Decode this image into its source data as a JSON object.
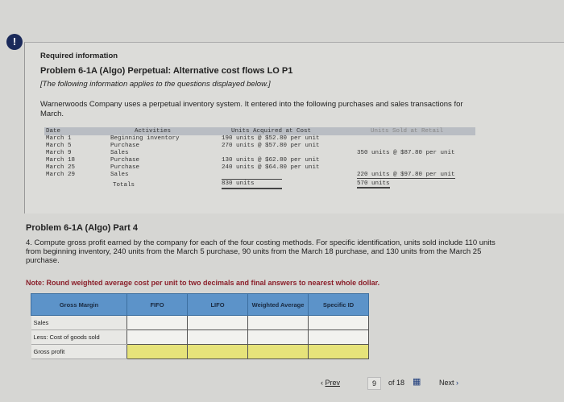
{
  "alert_icon": "exclamation-icon",
  "header": {
    "required": "Required information",
    "title": "Problem 6-1A (Algo) Perpetual: Alternative cost flows LO P1",
    "note": "[The following information applies to the questions displayed below.]",
    "intro": "Warnerwoods Company uses a perpetual inventory system. It entered into the following purchases and sales transactions for March."
  },
  "inventory": {
    "headers": [
      "Date",
      "Activities",
      "Units Acquired at Cost",
      "Units Sold at Retail"
    ],
    "rows": [
      {
        "date": "March 1",
        "activity": "Beginning inventory",
        "acquired": "190 units  @ $52.80 per unit",
        "sold": ""
      },
      {
        "date": "March 5",
        "activity": "Purchase",
        "acquired": "270 units  @ $57.80 per unit",
        "sold": ""
      },
      {
        "date": "March 9",
        "activity": "Sales",
        "acquired": "",
        "sold": "350 units @ $87.80 per unit"
      },
      {
        "date": "March 18",
        "activity": "Purchase",
        "acquired": "130 units  @ $62.80 per unit",
        "sold": ""
      },
      {
        "date": "March 25",
        "activity": "Purchase",
        "acquired": "240 units  @ $64.80 per unit",
        "sold": ""
      },
      {
        "date": "March 29",
        "activity": "Sales",
        "acquired": "",
        "sold": "220 units @ $97.80 per unit"
      }
    ],
    "totals_label": "Totals",
    "total_acquired": "830 units",
    "total_sold": "570 units"
  },
  "part": {
    "title": "Problem 6-1A (Algo) Part 4",
    "question": "4. Compute gross profit earned by the company for each of the four costing methods. For specific identification, units sold include 110 units from beginning inventory, 240 units from the March 5 purchase, 90 units from the March 18 purchase, and 130 units from the March 25 purchase.",
    "note": "Note: Round weighted average cost per unit to two decimals and final answers to nearest whole dollar."
  },
  "gross_margin": {
    "headers": [
      "Gross Margin",
      "FIFO",
      "LIFO",
      "Weighted Average",
      "Specific ID"
    ],
    "rows": [
      "Sales",
      "Less: Cost of goods sold",
      "Gross profit"
    ]
  },
  "nav": {
    "prev": "Prev",
    "page": "9",
    "of": "of 18",
    "next": "Next",
    "grid_icon": "grid-icon"
  }
}
